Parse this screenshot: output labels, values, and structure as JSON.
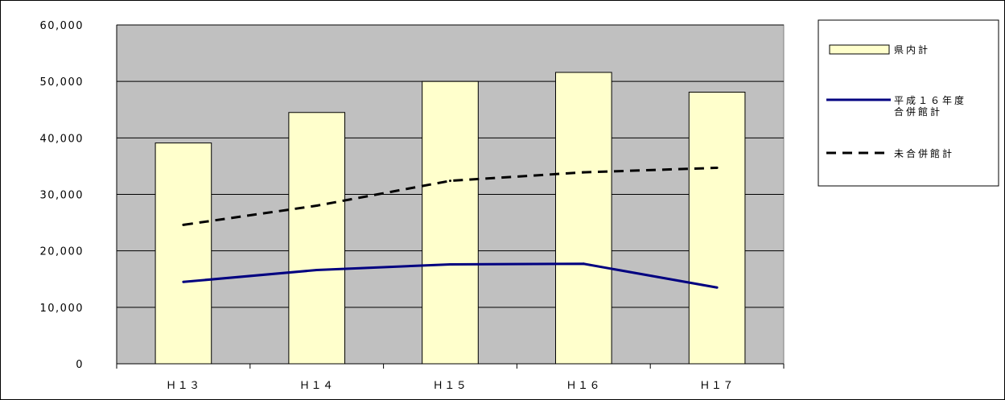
{
  "chart_data": {
    "type": "bar",
    "categories": [
      "Ｈ１３",
      "Ｈ１４",
      "Ｈ１５",
      "Ｈ１６",
      "Ｈ１７"
    ],
    "ylim": [
      0,
      60000
    ],
    "yticks": [
      "0",
      "10,000",
      "20,000",
      "30,000",
      "40,000",
      "50,000",
      "60,000"
    ],
    "grid": true,
    "legend_position": "right",
    "series": [
      {
        "name": "県内計",
        "kind": "bar",
        "values": [
          39100,
          44500,
          50000,
          51600,
          48100
        ],
        "color": "#ffffcc"
      },
      {
        "name": "平成１６年度\n合併館計",
        "kind": "line",
        "style": "solid",
        "values": [
          14500,
          16600,
          17600,
          17700,
          13500
        ],
        "color": "#000080"
      },
      {
        "name": "未合併館計",
        "kind": "line",
        "style": "dashed",
        "values": [
          24600,
          28000,
          32400,
          33900,
          34700
        ],
        "color": "#000000"
      }
    ],
    "colors": {
      "plot_background": "#c0c0c0",
      "gridline": "#000000",
      "axis": "#000000"
    }
  }
}
